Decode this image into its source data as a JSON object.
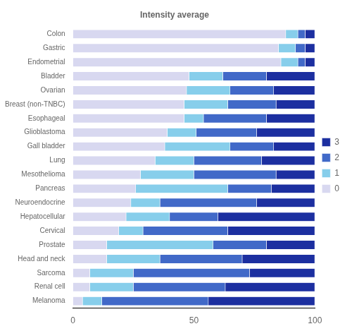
{
  "chart_data": {
    "type": "bar",
    "orientation": "horizontal",
    "stacked": true,
    "title": "Intensity average",
    "categories": [
      "Melanoma",
      "Renal cell",
      "Sarcoma",
      "Head and neck",
      "Prostate",
      "Cervical",
      "Hepatocellular",
      "Neuroendocrine",
      "Pancreas",
      "Mesothelioma",
      "Lung",
      "Gall bladder",
      "Glioblastoma",
      "Esophageal",
      "Breast (non-TNBC)",
      "Ovarian",
      "Bladder",
      "Endometrial",
      "Gastric",
      "Colon"
    ],
    "series": [
      {
        "name": "0",
        "color": "#d8d8f0",
        "values": [
          4,
          7,
          7,
          14,
          14,
          19,
          22,
          24,
          26,
          28,
          34,
          38,
          39,
          46,
          46,
          47,
          48,
          86,
          85,
          88
        ]
      },
      {
        "name": "1",
        "color": "#87ceeb",
        "values": [
          8,
          18,
          18,
          22,
          44,
          10,
          18,
          12,
          38,
          22,
          16,
          27,
          12,
          8,
          18,
          18,
          14,
          7,
          7,
          5
        ]
      },
      {
        "name": "2",
        "color": "#4169c8",
        "values": [
          44,
          38,
          48,
          34,
          22,
          35,
          20,
          40,
          18,
          34,
          28,
          18,
          25,
          26,
          20,
          18,
          18,
          3,
          4,
          3
        ]
      },
      {
        "name": "3",
        "color": "#1c2fa0",
        "values": [
          44,
          37,
          27,
          30,
          20,
          36,
          40,
          24,
          18,
          16,
          22,
          17,
          24,
          20,
          16,
          17,
          20,
          4,
          4,
          4
        ]
      }
    ],
    "xlim": [
      0,
      100
    ],
    "xticks": [
      0,
      50,
      100
    ],
    "grid": false,
    "legend": "right"
  }
}
